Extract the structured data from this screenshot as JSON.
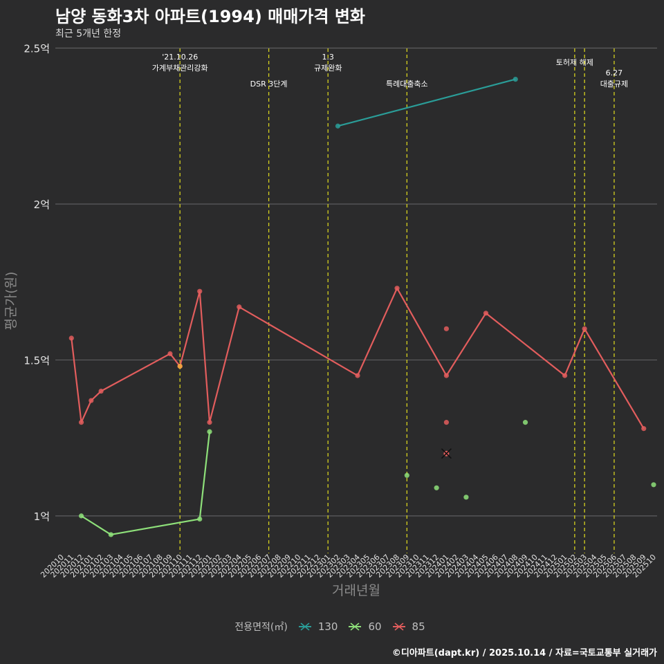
{
  "title": "남양 동화3차 아파트(1994) 매매가격 변화",
  "subtitle": "최근 5개년 한정",
  "caption": "©디아파트(dapt.kr) / 2025.10.14 / 자료=국토교통부 실거래가",
  "chart_data": {
    "type": "line",
    "xlabel": "거래년월",
    "ylabel": "평균가(원)",
    "ylim": [
      0.88,
      2.51
    ],
    "yticks": [
      {
        "value": 1.0,
        "label": "1억"
      },
      {
        "value": 1.5,
        "label": "1.5억"
      },
      {
        "value": 2.0,
        "label": "2억"
      },
      {
        "value": 2.5,
        "label": "2.5억"
      }
    ],
    "categories": [
      "202010",
      "202011",
      "202012",
      "202101",
      "202102",
      "202103",
      "202104",
      "202105",
      "202106",
      "202107",
      "202108",
      "202109",
      "202110",
      "202111",
      "202112",
      "202201",
      "202202",
      "202203",
      "202204",
      "202205",
      "202206",
      "202207",
      "202208",
      "202209",
      "202210",
      "202211",
      "202212",
      "202301",
      "202302",
      "202303",
      "202304",
      "202305",
      "202306",
      "202307",
      "202308",
      "202309",
      "202310",
      "202311",
      "202312",
      "202401",
      "202402",
      "202403",
      "202404",
      "202405",
      "202406",
      "202407",
      "202408",
      "202409",
      "202410",
      "202411",
      "202412",
      "202501",
      "202502",
      "202503",
      "202504",
      "202505",
      "202506",
      "202507",
      "202508",
      "202509",
      "202510"
    ],
    "legend_title": "전용면적(㎡)",
    "series": [
      {
        "name": "130",
        "color": "#2a9d98",
        "line": [
          [
            "202302",
            2.25
          ],
          [
            "202408",
            2.4
          ]
        ],
        "points": []
      },
      {
        "name": "60",
        "color": "#8ee07a",
        "line": [
          [
            "202012",
            1.0
          ],
          [
            "202103",
            0.94
          ],
          [
            "202112",
            0.99
          ],
          [
            "202201",
            1.27
          ]
        ],
        "points": [
          [
            "202309",
            1.13
          ],
          [
            "202312",
            1.09
          ],
          [
            "202403",
            1.06
          ],
          [
            "202409",
            1.3
          ],
          [
            "202510",
            1.1
          ]
        ]
      },
      {
        "name": "85",
        "color": "#e25d5d",
        "line": [
          [
            "202011",
            1.57
          ],
          [
            "202012",
            1.3
          ],
          [
            "202101",
            1.37
          ],
          [
            "202102",
            1.4
          ],
          [
            "202109",
            1.52
          ],
          [
            "202110",
            1.48
          ],
          [
            "202112",
            1.72
          ],
          [
            "202201",
            1.3
          ],
          [
            "202204",
            1.67
          ],
          [
            "202304",
            1.45
          ],
          [
            "202308",
            1.73
          ],
          [
            "202401",
            1.45
          ],
          [
            "202405",
            1.65
          ],
          [
            "202501",
            1.45
          ],
          [
            "202503",
            1.6
          ],
          [
            "202509",
            1.28
          ]
        ],
        "points": [
          [
            "202401",
            1.6
          ],
          [
            "202401",
            1.3
          ]
        ]
      }
    ],
    "cross_marker": {
      "x": "202401",
      "y": 1.2
    },
    "events": [
      {
        "x": "202110",
        "label": "'21.10.26\n가계부채관리강화",
        "row": 0
      },
      {
        "x": "202207",
        "label": "DSR 3단계",
        "row": 1
      },
      {
        "x": "202301",
        "label": "1.3\n규제완화",
        "row": 0
      },
      {
        "x": "202309",
        "label": "특례대출축소",
        "row": 1
      },
      {
        "x": "202502",
        "label": "토허제 해제",
        "row": 0
      },
      {
        "x": "202503",
        "label": "",
        "row": 0
      },
      {
        "x": "202506",
        "label": "6.27\n대출규제",
        "row": 1
      }
    ]
  }
}
